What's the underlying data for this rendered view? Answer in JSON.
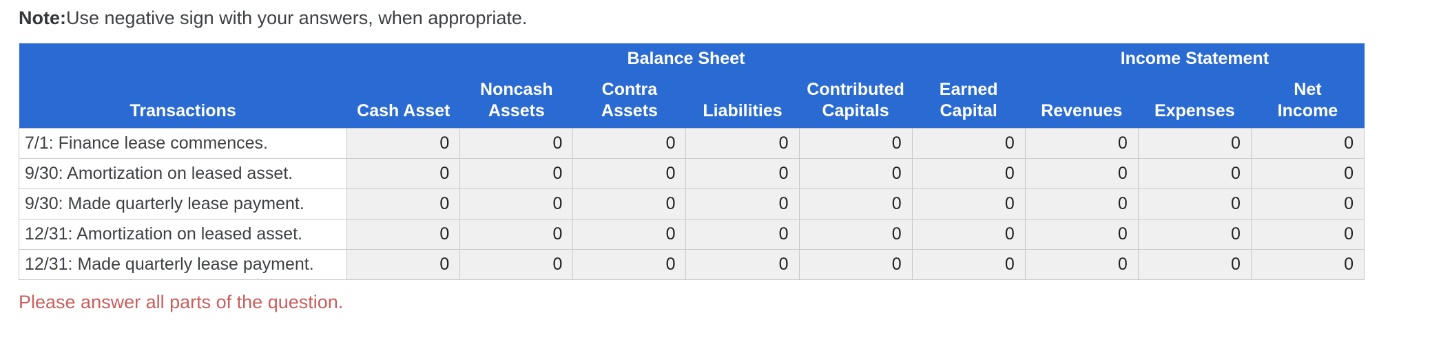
{
  "note": {
    "label": "Note:",
    "text": "Use negative sign with your answers, when appropriate."
  },
  "table": {
    "group_headers": [
      {
        "label": "Balance Sheet",
        "colspan": 6
      },
      {
        "label": "Income Statement",
        "colspan": 3
      }
    ],
    "columns": [
      "Transactions",
      "Cash Asset",
      "Noncash\nAssets",
      "Contra\nAssets",
      "Liabilities",
      "Contributed\nCapitals",
      "Earned\nCapital",
      "Revenues",
      "Expenses",
      "Net\nIncome"
    ],
    "rows": [
      {
        "label": "7/1: Finance lease commences.",
        "values": [
          "0",
          "0",
          "0",
          "0",
          "0",
          "0",
          "0",
          "0",
          "0"
        ]
      },
      {
        "label": "9/30: Amortization on leased asset.",
        "values": [
          "0",
          "0",
          "0",
          "0",
          "0",
          "0",
          "0",
          "0",
          "0"
        ]
      },
      {
        "label": "9/30: Made quarterly lease payment.",
        "values": [
          "0",
          "0",
          "0",
          "0",
          "0",
          "0",
          "0",
          "0",
          "0"
        ]
      },
      {
        "label": "12/31: Amortization on leased asset.",
        "values": [
          "0",
          "0",
          "0",
          "0",
          "0",
          "0",
          "0",
          "0",
          "0"
        ]
      },
      {
        "label": "12/31: Made quarterly lease payment.",
        "values": [
          "0",
          "0",
          "0",
          "0",
          "0",
          "0",
          "0",
          "0",
          "0"
        ]
      }
    ]
  },
  "message": {
    "text": "Please answer all parts of the question."
  },
  "colors": {
    "header_bg": "#2a6ad3",
    "cell_bg": "#f0f0f0",
    "warning": "#cb5e5b"
  }
}
